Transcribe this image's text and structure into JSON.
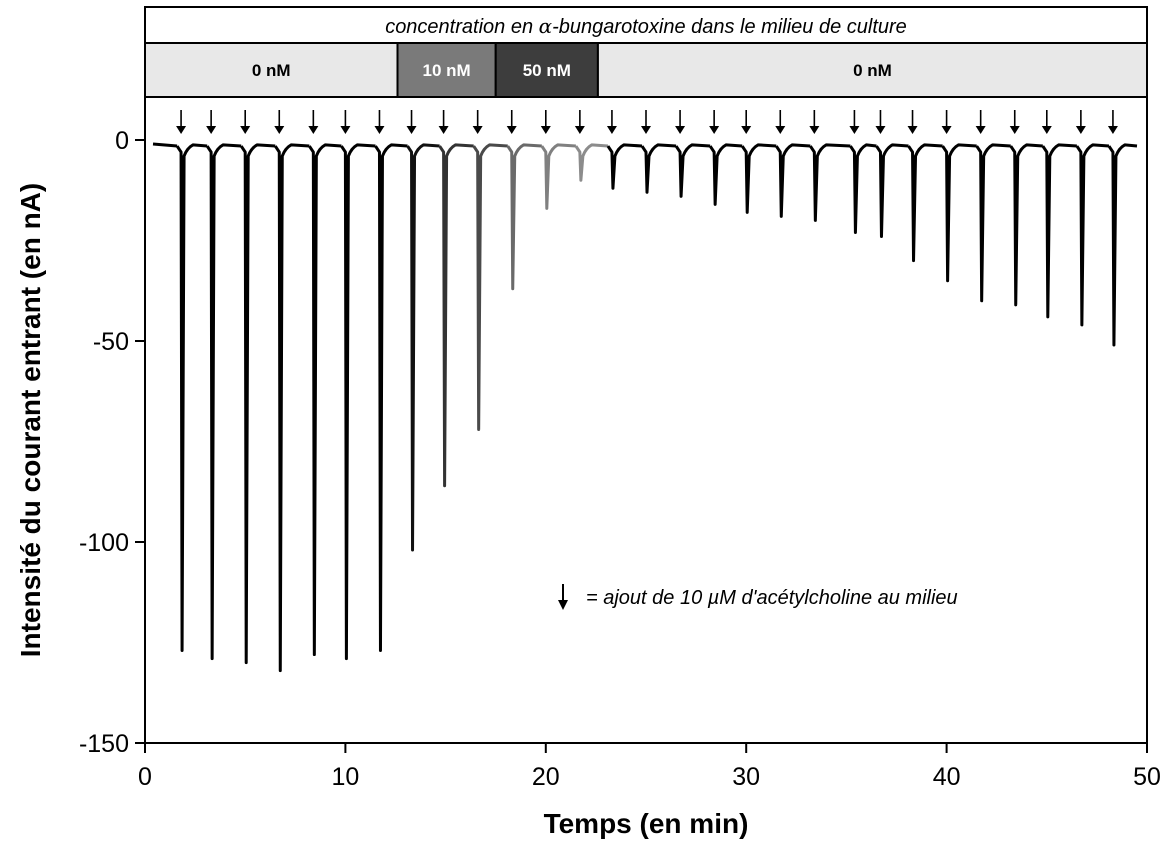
{
  "chart_data": {
    "type": "line",
    "header": {
      "pre": "concentration en ",
      "symbol": "α",
      "post": "-bungarotoxine dans le milieu de culture"
    },
    "bands": [
      {
        "label": "0 nM",
        "start": 0,
        "end": 12.6,
        "fill": "#e8e8e8",
        "text_color": "#000000"
      },
      {
        "label": "10 nM",
        "start": 12.6,
        "end": 17.5,
        "fill": "#7a7a7a",
        "text_color": "#ffffff"
      },
      {
        "label": "50 nM",
        "start": 17.5,
        "end": 22.6,
        "fill": "#3d3d3d",
        "text_color": "#ffffff"
      },
      {
        "label": "0 nM",
        "start": 22.6,
        "end": 50,
        "fill": "#e8e8e8",
        "text_color": "#000000"
      }
    ],
    "xlabel": "Temps (en min)",
    "ylabel": "Intensité du courant entrant (en nA)",
    "xlim": [
      0,
      50
    ],
    "ylim": [
      -150,
      10
    ],
    "x_ticks": [
      0,
      10,
      20,
      30,
      40,
      50
    ],
    "y_ticks": [
      0,
      -50,
      -100,
      -150
    ],
    "legend": {
      "arrow_symbol": "↓",
      "text": "= ajout de 10 µM d'acétylcholine au milieu"
    },
    "series": [
      {
        "baseline": 0,
        "pulses": [
          {
            "time": 1.8,
            "peak": -127,
            "color": "#000000"
          },
          {
            "time": 3.3,
            "peak": -129,
            "color": "#000000"
          },
          {
            "time": 5.0,
            "peak": -130,
            "color": "#000000"
          },
          {
            "time": 6.7,
            "peak": -132,
            "color": "#000000"
          },
          {
            "time": 8.4,
            "peak": -128,
            "color": "#000000"
          },
          {
            "time": 10.0,
            "peak": -129,
            "color": "#000000"
          },
          {
            "time": 11.7,
            "peak": -127,
            "color": "#000000"
          },
          {
            "time": 13.3,
            "peak": -102,
            "color": "#111111"
          },
          {
            "time": 14.9,
            "peak": -86,
            "color": "#333333"
          },
          {
            "time": 16.6,
            "peak": -72,
            "color": "#4a4a4a"
          },
          {
            "time": 18.3,
            "peak": -37,
            "color": "#6a6a6a"
          },
          {
            "time": 20.0,
            "peak": -17,
            "color": "#808080"
          },
          {
            "time": 21.7,
            "peak": -10,
            "color": "#8c8c8c"
          },
          {
            "time": 23.3,
            "peak": -12,
            "color": "#000000"
          },
          {
            "time": 25.0,
            "peak": -13,
            "color": "#000000"
          },
          {
            "time": 26.7,
            "peak": -14,
            "color": "#000000"
          },
          {
            "time": 28.4,
            "peak": -16,
            "color": "#000000"
          },
          {
            "time": 30.0,
            "peak": -18,
            "color": "#000000"
          },
          {
            "time": 31.7,
            "peak": -19,
            "color": "#000000"
          },
          {
            "time": 33.4,
            "peak": -20,
            "color": "#000000"
          },
          {
            "time": 35.4,
            "peak": -23,
            "color": "#000000"
          },
          {
            "time": 36.7,
            "peak": -24,
            "color": "#000000"
          },
          {
            "time": 38.3,
            "peak": -30,
            "color": "#000000"
          },
          {
            "time": 40.0,
            "peak": -35,
            "color": "#000000"
          },
          {
            "time": 41.7,
            "peak": -40,
            "color": "#000000"
          },
          {
            "time": 43.4,
            "peak": -41,
            "color": "#000000"
          },
          {
            "time": 45.0,
            "peak": -44,
            "color": "#000000"
          },
          {
            "time": 46.7,
            "peak": -46,
            "color": "#000000"
          },
          {
            "time": 48.3,
            "peak": -51,
            "color": "#000000"
          }
        ]
      }
    ]
  }
}
